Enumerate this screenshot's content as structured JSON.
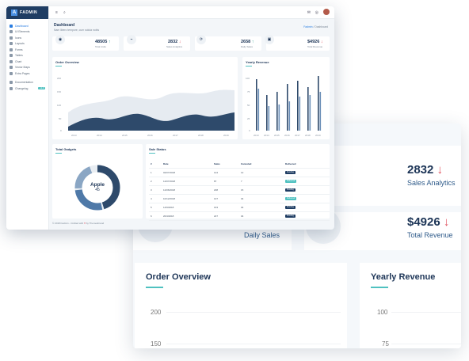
{
  "app": {
    "logo": "FADMIN"
  },
  "sidebar": {
    "items": [
      {
        "label": "Dashboard"
      },
      {
        "label": "UI Elements"
      },
      {
        "label": "Icons"
      },
      {
        "label": "Layouts"
      },
      {
        "label": "Forms"
      },
      {
        "label": "Tables"
      },
      {
        "label": "Chart"
      },
      {
        "label": "Vector Maps"
      },
      {
        "label": "Extra Pages"
      },
      {
        "label": "Documentation"
      },
      {
        "label": "Changelog",
        "badge": "v1.0"
      }
    ]
  },
  "header": {
    "title": "Dashboard",
    "subtitle": "Nam libero tempore, cum soluta nobis",
    "breadcrumb_root": "Fadmin",
    "breadcrumb_sep": "/",
    "breadcrumb_current": "Dashboard"
  },
  "stats": [
    {
      "value": "48505",
      "label": "Total visits",
      "trend": "up",
      "icon": "eye-icon"
    },
    {
      "value": "2832",
      "label": "Sales Analytics",
      "trend": "down",
      "icon": "chart-icon"
    },
    {
      "value": "2658",
      "label": "Daily Sales",
      "trend": "up",
      "icon": "refresh-icon"
    },
    {
      "value": "$4926",
      "label": "Total Revenue",
      "trend": "down",
      "icon": "wallet-icon"
    }
  ],
  "order_overview": {
    "title": "Order Overview",
    "y_ticks": [
      "200",
      "150",
      "100",
      "50",
      "0"
    ],
    "x_ticks": [
      "2013",
      "2014",
      "2015",
      "2016",
      "2017",
      "2018",
      "2019"
    ]
  },
  "yearly_revenue": {
    "title": "Yearly Revenue",
    "y_ticks": [
      "100",
      "75",
      "50",
      "25",
      "0"
    ],
    "x_ticks": [
      "2013",
      "2014",
      "2015",
      "2016",
      "2017",
      "2018",
      "2019"
    ]
  },
  "sale_widget": {
    "title": "Total Gadgets",
    "center_label": "Apple",
    "center_value": "45"
  },
  "sale_status": {
    "title": "Sale Status",
    "headers": [
      "#",
      "Date",
      "Sales",
      "Canceled",
      "Delivered"
    ],
    "rows": [
      [
        "1",
        "02/07/2018",
        "124",
        "12",
        "Pending"
      ],
      [
        "2",
        "12/07/2018",
        "87",
        "7",
        "Delivered"
      ],
      [
        "3",
        "12/06/2018",
        "208",
        "15",
        "Pending"
      ],
      [
        "4",
        "10/12/2018",
        "137",
        "04",
        "Delivered"
      ],
      [
        "5",
        "14/9/2018",
        "163",
        "04",
        "Pending"
      ],
      [
        "6",
        "20/4/2018",
        "227",
        "04",
        "Pending"
      ]
    ]
  },
  "footer": {
    "text": "© 2018 Fadmin - Crafted with",
    "heart": "♥",
    "by": "by Themesbrand"
  },
  "zoom": {
    "stats": [
      {
        "value": "2832",
        "label": "Sales Analytics"
      },
      {
        "value": "2658",
        "label": "Daily Sales"
      },
      {
        "value": "$4926",
        "label": "Total Revenue"
      }
    ],
    "order_title": "Order Overview",
    "order_ticks": [
      "200",
      "150"
    ],
    "revenue_title": "Yearly Revenue",
    "revenue_ticks": [
      "100",
      "75"
    ]
  },
  "colors": {
    "navy": "#1f3d63",
    "teal": "#4fc1c0",
    "danger": "#e05260",
    "area_fill": "#2e4a6b",
    "area_back": "#e6ebf1"
  }
}
